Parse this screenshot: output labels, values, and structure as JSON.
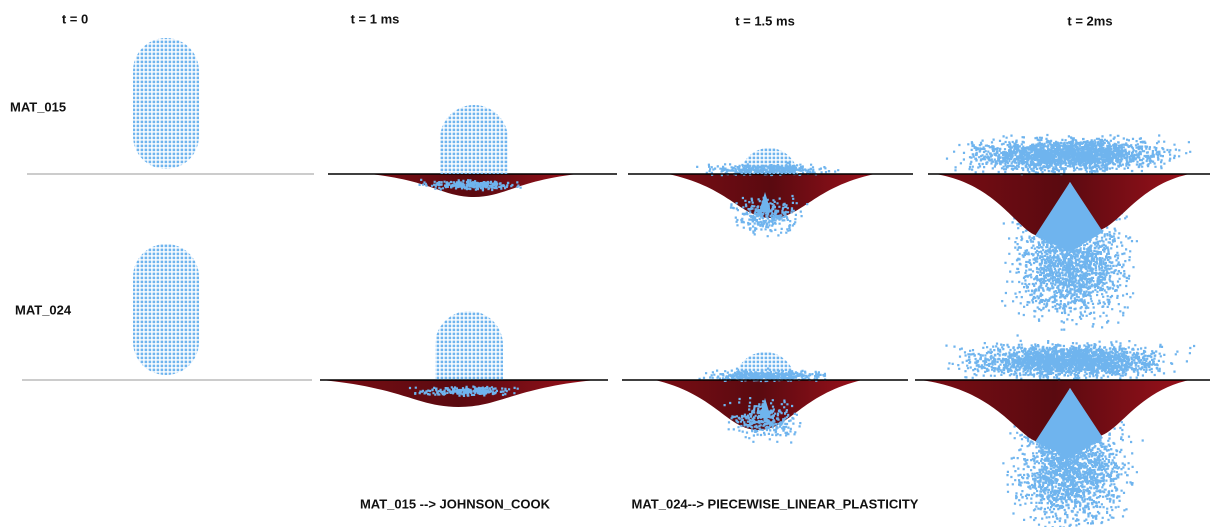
{
  "columns": [
    "t = 0",
    "t = 1 ms",
    "t = 1.5 ms",
    "t = 2ms"
  ],
  "rows": [
    "MAT_015",
    "MAT_024"
  ],
  "notes": [
    "MAT_015 --> JOHNSON_COOK",
    "MAT_024--> PIECEWISE_LINEAR_PLASTICITY"
  ]
}
